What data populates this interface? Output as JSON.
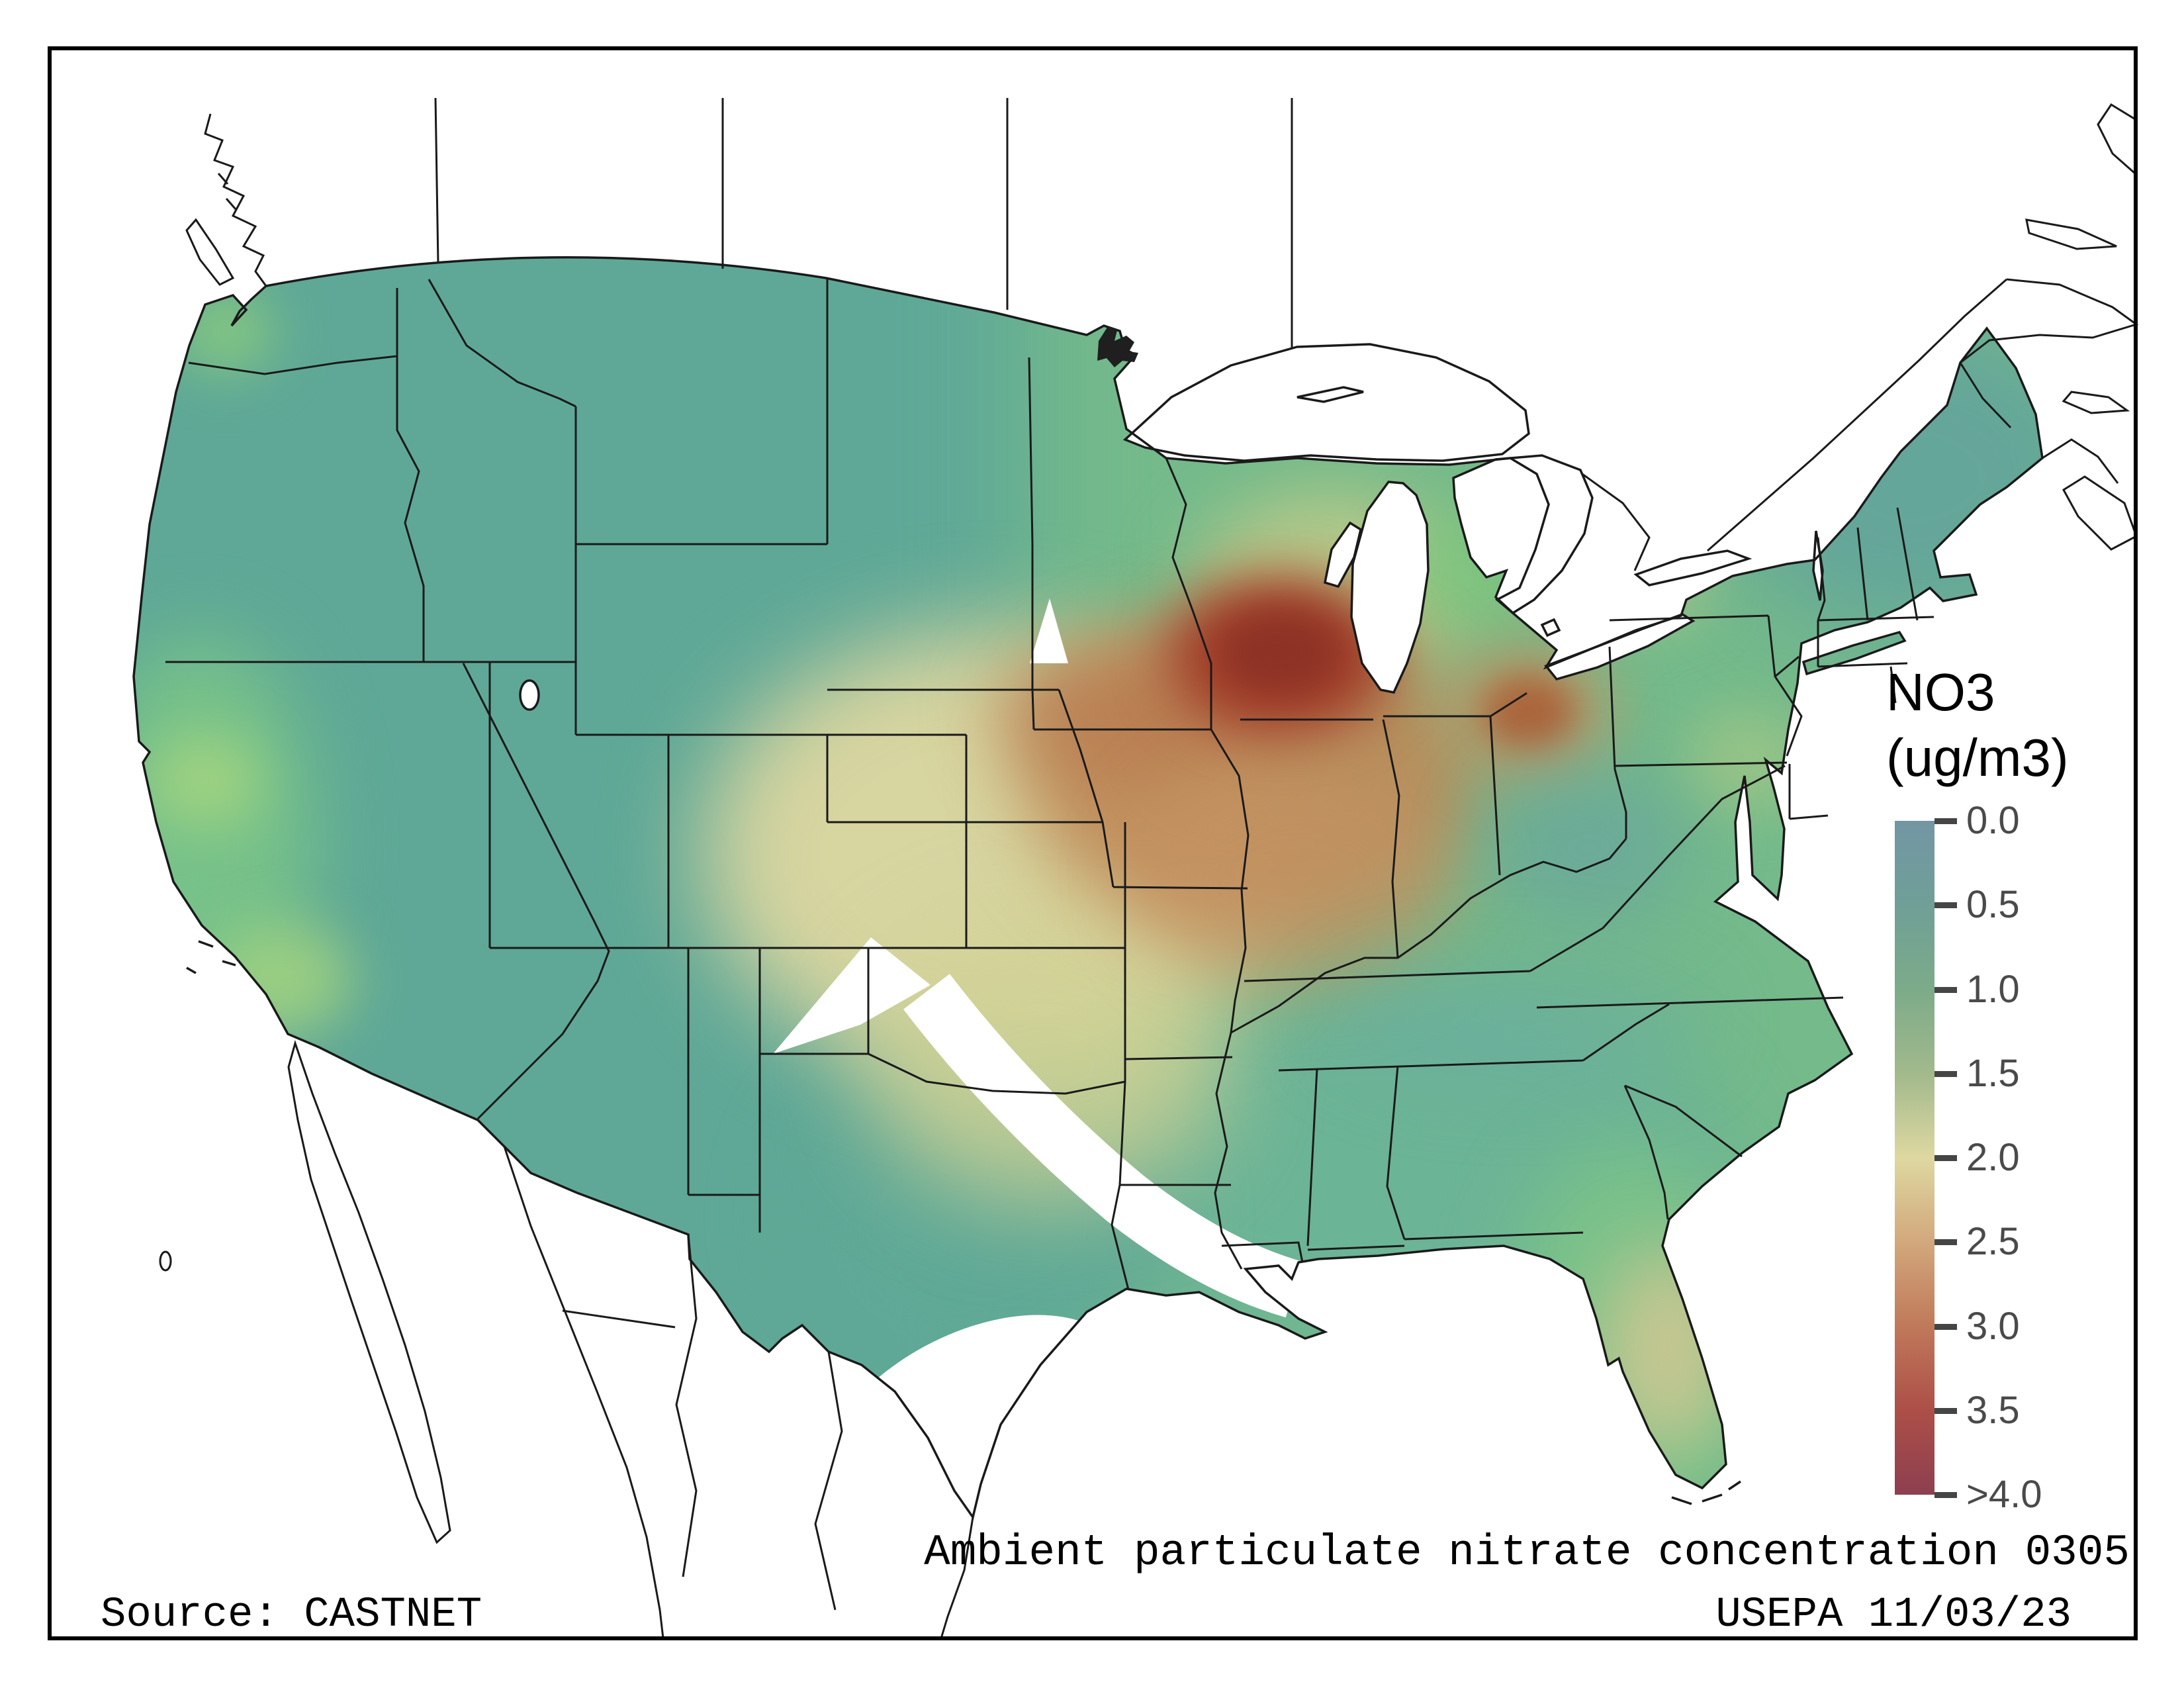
{
  "legend": {
    "title": "NO3",
    "units": "(ug/m3)",
    "ticks": [
      "0.0",
      "0.5",
      "1.0",
      "1.5",
      "2.0",
      "2.5",
      "3.0",
      "3.5",
      ">4.0"
    ]
  },
  "footer": {
    "title": "Ambient particulate nitrate concentration 0305",
    "source": "Source: CASTNET",
    "agency_date": "USEPA 11/03/23"
  },
  "chart_data": {
    "type": "heatmap",
    "title": "Ambient particulate nitrate concentration 0305",
    "variable": "NO3",
    "units": "ug/m3",
    "region_shown": "Contiguous United States with state boundaries; Canada and Mexico outlined, unshaded",
    "legend_position": "right",
    "scale_ticks": [
      0.0,
      0.5,
      1.0,
      1.5,
      2.0,
      2.5,
      3.0,
      3.5,
      4.0
    ],
    "scale_max_label": ">4.0",
    "colorbar_colors_top_to_bottom": [
      "#7396a4",
      "#6f9f97",
      "#7cab89",
      "#a2b98c",
      "#ded8a1",
      "#d2a87c",
      "#c0795a",
      "#ad4f48",
      "#8d3f50"
    ],
    "regions_estimated_values": [
      {
        "region": "Pacific Northwest (WA/OR)",
        "value": 0.5
      },
      {
        "region": "Mountain West (MT/ID/WY/NV/UT/CO)",
        "value": 0.4
      },
      {
        "region": "California Central Valley / southern CA",
        "value": 1.4
      },
      {
        "region": "Northern Plains (ND/SD)",
        "value": 0.6
      },
      {
        "region": "Central Plains (NE/KS/OK)",
        "value": 2.0
      },
      {
        "region": "Western Iowa / Missouri corn belt",
        "value": 2.6
      },
      {
        "region": "Eastern Iowa / NW Illinois hotspot",
        "value": 4.0
      },
      {
        "region": "Illinois / Indiana",
        "value": 2.4
      },
      {
        "region": "Northern Ohio local maximum",
        "value": 3.0
      },
      {
        "region": "Wisconsin / Lower Michigan",
        "value": 1.6
      },
      {
        "region": "Appalachia (WV) pocket",
        "value": 0.4
      },
      {
        "region": "Southeast (TN/MS/AL/GA/Carolinas)",
        "value": 0.8
      },
      {
        "region": "Central Florida",
        "value": 1.9
      },
      {
        "region": "Northeast (New England)",
        "value": 0.5
      },
      {
        "region": "Mid-Atlantic (PA/NJ/MD)",
        "value": 1.3
      },
      {
        "region": "Texas (most, teal band)",
        "value": 0.6
      },
      {
        "region": "NE New Mexico triangle and central Texas crescent",
        "value": null,
        "note": "no data (white mask)"
      },
      {
        "region": "South Texas tip",
        "value": null,
        "note": "no data (white mask)"
      }
    ],
    "notes": "Smoothly interpolated concentration surface clipped to the lower 48; white areas are masked / no data; Great Lakes shown white"
  },
  "colors": {
    "line": "#1a1a1a",
    "water": "#ffffff",
    "no_data": "#ffffff",
    "lake_blob": "#1f1f1f",
    "frame": "#000000",
    "tick_text": "#4a4a4a",
    "base_green": "#74ba8b",
    "west_teal": "#5fa897",
    "tx_teal": "#5fa897",
    "south_teal": "#68b19c",
    "northeast_teal": "#62a29c",
    "ca_green": "#7ac488",
    "ca_light": "#a8d67e",
    "wa_green": "#8ccd7c",
    "wi_olive": "#c6cc8a",
    "mi_green": "#7cc47e",
    "ny_olive": "#c2c98a",
    "pa_light": "#abc985",
    "plains_tan": "#ddd7a0",
    "plains_tan2": "#cfd194",
    "corn_brown": "#bf8a58",
    "corn_brown2": "#b87c50",
    "corn_brown3": "#c49363",
    "hotspot_red": "#a03a27",
    "hotspot_core": "#8c3126",
    "ohio_halo": "#c49363",
    "ohio_core": "#ad6138",
    "wv_teal": "#649ea6",
    "tn_teal": "#68aaa2",
    "fl_green": "#7cc487",
    "fl_tan": "#cfc792",
    "colorbar": [
      "#7396a4",
      "#6f9f97",
      "#7cab89",
      "#a2b98c",
      "#ded8a1",
      "#d2a87c",
      "#c0795a",
      "#ad4f48",
      "#8d3f50"
    ]
  }
}
